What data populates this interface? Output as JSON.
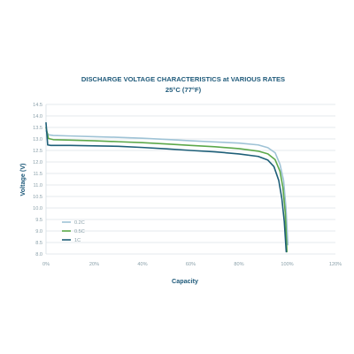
{
  "chart_data": {
    "type": "line",
    "title": "DISCHARGE VOLTAGE CHARACTERISTICS at VARIOUS RATES",
    "subtitle": "25°C (77°F)",
    "xlabel": "Capacity",
    "ylabel": "Voltage (V)",
    "xlim": [
      0,
      120
    ],
    "ylim": [
      8.0,
      14.5
    ],
    "xticks": [
      0,
      20,
      40,
      60,
      80,
      100,
      120
    ],
    "xtick_labels": [
      "0%",
      "20%",
      "40%",
      "60%",
      "80%",
      "100%",
      "120%"
    ],
    "yticks": [
      8.0,
      8.5,
      9.0,
      9.5,
      10.0,
      10.5,
      11.0,
      11.5,
      12.0,
      12.5,
      13.0,
      13.5,
      14.0,
      14.5
    ],
    "ytick_labels": [
      "8.0",
      "8.5",
      "9.0",
      "9.5",
      "10.0",
      "10.5",
      "11.0",
      "11.5",
      "12.0",
      "12.5",
      "13.0",
      "13.5",
      "14.0",
      "14.5"
    ],
    "grid": true,
    "legend_position": "lower-left",
    "series": [
      {
        "name": "0.2C",
        "color": "#9fc3d6",
        "x": [
          0,
          1,
          3,
          10,
          20,
          30,
          40,
          50,
          60,
          70,
          80,
          88,
          92,
          95,
          97,
          98.5,
          99.5,
          100.3
        ],
        "y": [
          13.35,
          13.18,
          13.15,
          13.13,
          13.1,
          13.07,
          13.03,
          12.98,
          12.92,
          12.87,
          12.82,
          12.74,
          12.62,
          12.4,
          11.9,
          11.2,
          10.0,
          8.4
        ]
      },
      {
        "name": "0.5C",
        "color": "#5ca84a",
        "x": [
          0,
          1,
          3,
          10,
          20,
          30,
          40,
          50,
          60,
          70,
          80,
          88,
          92,
          95,
          97,
          98.2,
          99.2,
          99.9
        ],
        "y": [
          13.5,
          13.02,
          12.97,
          12.95,
          12.92,
          12.88,
          12.84,
          12.78,
          12.72,
          12.66,
          12.58,
          12.47,
          12.35,
          12.1,
          11.6,
          10.9,
          9.8,
          8.1
        ]
      },
      {
        "name": "1C",
        "color": "#1e5f78",
        "x": [
          0,
          0.7,
          2,
          10,
          20,
          30,
          40,
          50,
          60,
          70,
          80,
          88,
          92,
          94.5,
          96.5,
          97.8,
          98.8,
          99.6
        ],
        "y": [
          13.7,
          12.74,
          12.72,
          12.72,
          12.7,
          12.68,
          12.63,
          12.57,
          12.5,
          12.44,
          12.35,
          12.24,
          12.08,
          11.8,
          11.2,
          10.4,
          9.4,
          8.1
        ]
      }
    ]
  }
}
